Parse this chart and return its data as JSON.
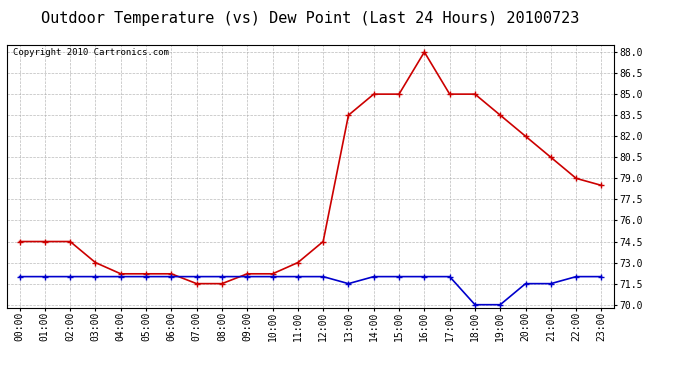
{
  "title": "Outdoor Temperature (vs) Dew Point (Last 24 Hours) 20100723",
  "copyright": "Copyright 2010 Cartronics.com",
  "hours": [
    "00:00",
    "01:00",
    "02:00",
    "03:00",
    "04:00",
    "05:00",
    "06:00",
    "07:00",
    "08:00",
    "09:00",
    "10:00",
    "11:00",
    "12:00",
    "13:00",
    "14:00",
    "15:00",
    "16:00",
    "17:00",
    "18:00",
    "19:00",
    "20:00",
    "21:00",
    "22:00",
    "23:00"
  ],
  "temp": [
    74.5,
    74.5,
    74.5,
    73.0,
    72.2,
    72.2,
    72.2,
    71.5,
    71.5,
    72.2,
    72.2,
    73.0,
    74.5,
    83.5,
    85.0,
    85.0,
    88.0,
    85.0,
    85.0,
    83.5,
    82.0,
    80.5,
    79.0,
    78.5
  ],
  "dew": [
    72.0,
    72.0,
    72.0,
    72.0,
    72.0,
    72.0,
    72.0,
    72.0,
    72.0,
    72.0,
    72.0,
    72.0,
    72.0,
    71.5,
    72.0,
    72.0,
    72.0,
    72.0,
    70.0,
    70.0,
    71.5,
    71.5,
    72.0,
    72.0
  ],
  "temp_color": "#cc0000",
  "dew_color": "#0000cc",
  "bg_color": "#ffffff",
  "grid_color": "#aaaaaa",
  "ylim": [
    69.8,
    88.5
  ],
  "yticks": [
    70.0,
    71.5,
    73.0,
    74.5,
    76.0,
    77.5,
    79.0,
    80.5,
    82.0,
    83.5,
    85.0,
    86.5,
    88.0
  ],
  "title_fontsize": 11,
  "copyright_fontsize": 6.5,
  "tick_fontsize": 7,
  "marker": "+",
  "marker_size": 4,
  "line_width": 1.2
}
